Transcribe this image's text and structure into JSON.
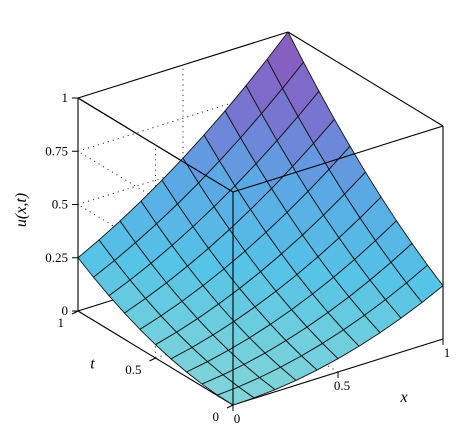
{
  "chart_data": {
    "type": "surface",
    "function": "u(x,t)",
    "x": [
      0,
      0.1,
      0.2,
      0.3,
      0.4,
      0.5,
      0.6,
      0.7,
      0.8,
      0.9,
      1
    ],
    "t": [
      0,
      0.1,
      0.2,
      0.3,
      0.4,
      0.5,
      0.6,
      0.7,
      0.8,
      0.9,
      1
    ],
    "z": [
      [
        0.0,
        0.0001,
        0.0004,
        0.0009,
        0.0016,
        0.0025,
        0.0036,
        0.0049,
        0.0064,
        0.0081,
        0.01
      ],
      [
        0.0001,
        0.0004,
        0.0009,
        0.0016,
        0.0025,
        0.0036,
        0.0049,
        0.0064,
        0.0081,
        0.01,
        0.0121
      ],
      [
        0.0004,
        0.0009,
        0.0016,
        0.0025,
        0.0036,
        0.0049,
        0.0064,
        0.0081,
        0.01,
        0.0121,
        0.0144
      ],
      [
        0.0009,
        0.0016,
        0.0025,
        0.0036,
        0.0049,
        0.0064,
        0.0081,
        0.01,
        0.0121,
        0.0144,
        0.0169
      ],
      [
        0.0016,
        0.0025,
        0.0036,
        0.0049,
        0.0064,
        0.0081,
        0.01,
        0.0121,
        0.0144,
        0.0169,
        0.0196
      ],
      [
        0.0025,
        0.0036,
        0.0049,
        0.0064,
        0.0081,
        0.01,
        0.0121,
        0.0144,
        0.0169,
        0.0196,
        0.0225
      ],
      [
        0.0036,
        0.0049,
        0.0064,
        0.0081,
        0.01,
        0.0121,
        0.0144,
        0.0169,
        0.0196,
        0.0225,
        0.0256
      ],
      [
        0.0049,
        0.0064,
        0.0081,
        0.01,
        0.0121,
        0.0144,
        0.0169,
        0.0196,
        0.0225,
        0.0256,
        0.0289
      ],
      [
        0.0064,
        0.0081,
        0.01,
        0.0121,
        0.0144,
        0.0169,
        0.0196,
        0.0225,
        0.0256,
        0.0289,
        0.0324
      ],
      [
        0.0081,
        0.01,
        0.0121,
        0.0144,
        0.0169,
        0.0196,
        0.0225,
        0.0256,
        0.0289,
        0.0324,
        0.0361
      ],
      [
        0.01,
        0.0121,
        0.0144,
        0.0169,
        0.0196,
        0.0225,
        0.0256,
        0.0289,
        0.0324,
        0.0361,
        0.04
      ]
    ],
    "z_note_scale": 25,
    "xlabel": "x",
    "ylabel": "t",
    "zlabel": "u(x,t)",
    "x_ticks": [
      "0",
      "0.5",
      "1"
    ],
    "t_ticks": [
      "0",
      "0.5",
      "1"
    ],
    "z_ticks": [
      "0",
      "0.25",
      "0.5",
      "0.75",
      "1"
    ],
    "xlim": [
      0,
      1
    ],
    "tlim": [
      0,
      1
    ],
    "zlim": [
      0,
      1
    ],
    "grid": true,
    "colormap": [
      "#7fd4d8",
      "#55c4e6",
      "#5aa8e4",
      "#7c6fcf",
      "#8a56b6"
    ]
  }
}
